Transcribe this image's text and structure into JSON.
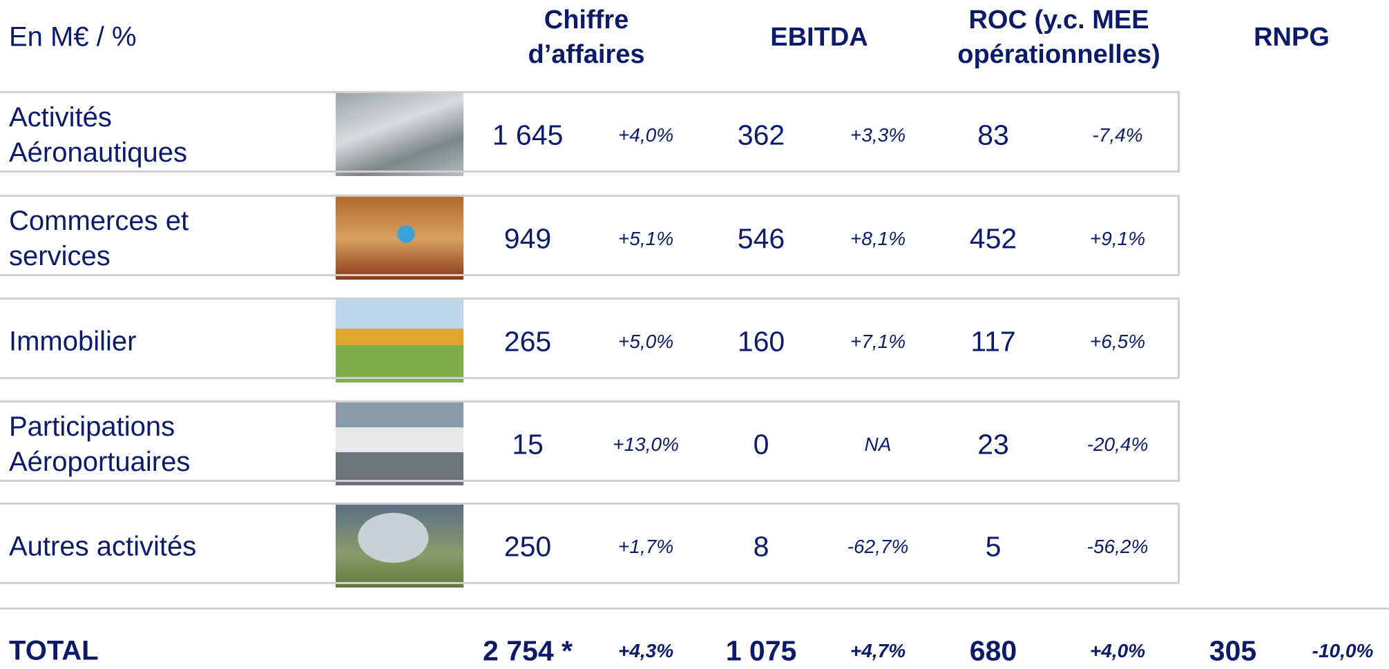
{
  "header": {
    "unit": "En M€ / %",
    "columns": [
      "Chiffre d’affaires",
      "EBITDA",
      "ROC (y.c. MEE opérationnelles)",
      "RNPG"
    ]
  },
  "rows": [
    {
      "label": "Activités Aéronautiques",
      "values": [
        "1 645",
        "+4,0%",
        "362",
        "+3,3%",
        "83",
        "-7,4%"
      ]
    },
    {
      "label": "Commerces et services",
      "values": [
        "949",
        "+5,1%",
        "546",
        "+8,1%",
        "452",
        "+9,1%"
      ]
    },
    {
      "label": "Immobilier",
      "values": [
        "265",
        "+5,0%",
        "160",
        "+7,1%",
        "117",
        "+6,5%"
      ]
    },
    {
      "label": "Participations Aéroportuaires",
      "values": [
        "15",
        "+13,0%",
        "0",
        "NA",
        "23",
        "-20,4%"
      ]
    },
    {
      "label": "Autres activités",
      "values": [
        "250",
        "+1,7%",
        "8",
        "-62,7%",
        "5",
        "-56,2%"
      ]
    }
  ],
  "total": {
    "label": "TOTAL",
    "values": [
      "2 754 *",
      "+4,3%",
      "1 075",
      "+4,7%",
      "680",
      "+4,0%",
      "305",
      "-10,0%"
    ]
  }
}
